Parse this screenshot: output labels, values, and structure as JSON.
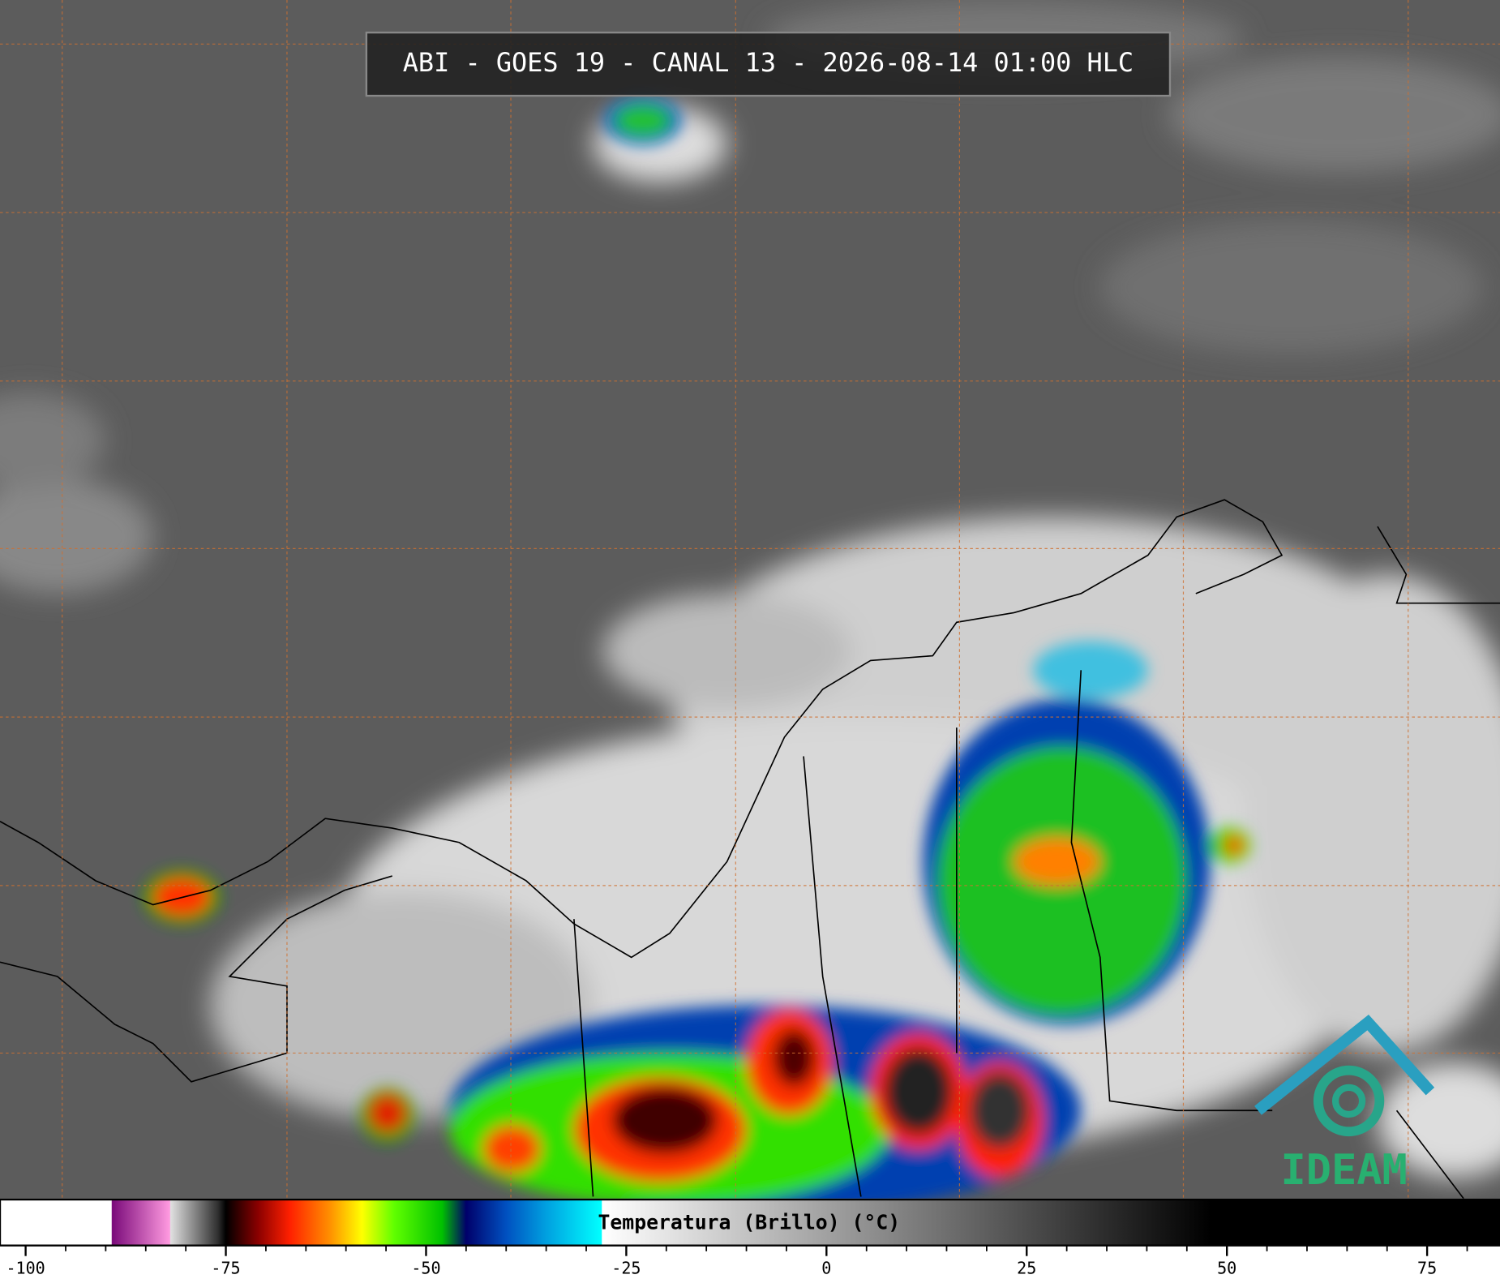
{
  "title": "ABI - GOES 19 - CANAL 13 - 2026-08-14 01:00 HLC",
  "logo": "IDEAM",
  "colorbar": {
    "label": "Temperatura (Brillo) (°C)",
    "xlim": [
      -103.2,
      84.1
    ],
    "ticks": [
      -100,
      -75,
      -50,
      -25,
      0,
      25,
      50,
      75
    ],
    "minor_ticks": [
      -95,
      -90,
      -85,
      -80,
      -70,
      -65,
      -60,
      -55,
      -45,
      -40,
      -35,
      -30,
      -20,
      -15,
      -10,
      -5,
      5,
      10,
      15,
      20,
      30,
      35,
      40,
      45,
      55,
      60,
      65,
      70,
      80
    ],
    "stops": [
      {
        "value": -103.2,
        "color": "#ffffff"
      },
      {
        "value": -89.3,
        "color": "#ffffff"
      },
      {
        "value": -89.2,
        "color": "#7a0a7a"
      },
      {
        "value": -82,
        "color": "#ff9ae0"
      },
      {
        "value": -81.9,
        "color": "#e0e0e0"
      },
      {
        "value": -76,
        "color": "#303030"
      },
      {
        "value": -75,
        "color": "#000000"
      },
      {
        "value": -71,
        "color": "#8a0000"
      },
      {
        "value": -67,
        "color": "#ff2000"
      },
      {
        "value": -62,
        "color": "#ff9000"
      },
      {
        "value": -58,
        "color": "#ffff00"
      },
      {
        "value": -54,
        "color": "#60ff00"
      },
      {
        "value": -48,
        "color": "#00c000"
      },
      {
        "value": -45,
        "color": "#00006a"
      },
      {
        "value": -40,
        "color": "#0050c0"
      },
      {
        "value": -35,
        "color": "#00a0e0"
      },
      {
        "value": -28.1,
        "color": "#00ffff"
      },
      {
        "value": -28,
        "color": "#ffffff"
      },
      {
        "value": 48,
        "color": "#000000"
      },
      {
        "value": 84.1,
        "color": "#000000"
      }
    ]
  }
}
